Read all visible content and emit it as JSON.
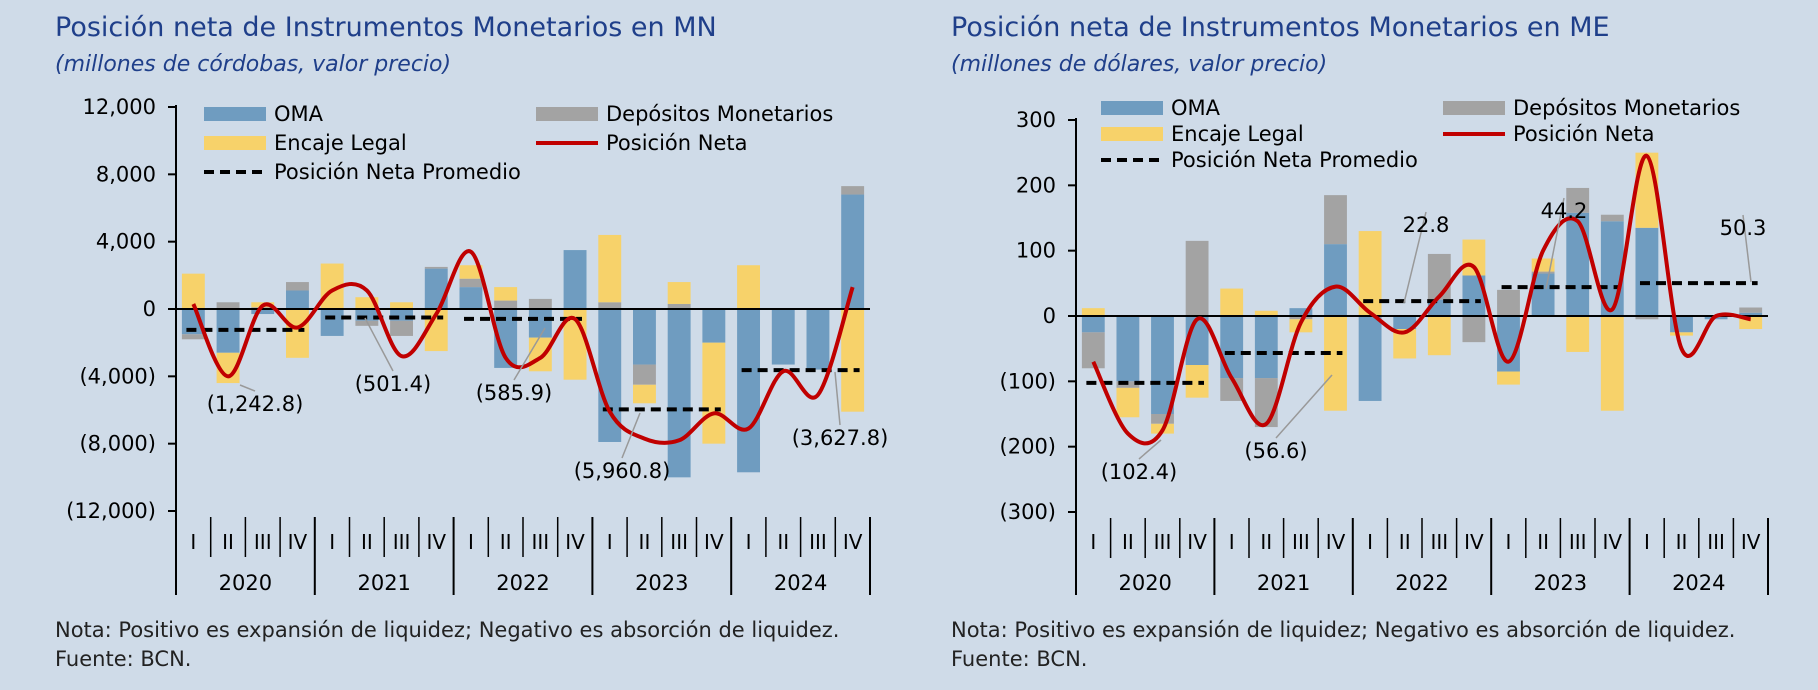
{
  "colors": {
    "oma": "#6f9cc0",
    "encaje": "#f7d26a",
    "depositos": "#a3a3a3",
    "posicion_neta": "#c00000",
    "promedio": "#000000"
  },
  "legend": {
    "oma": "OMA",
    "depositos": "Depósitos Monetarios",
    "encaje": "Encaje Legal",
    "posicion_neta": "Posición Neta",
    "promedio": "Posición Neta Promedio"
  },
  "footnote": {
    "nota": "Nota: Positivo es expansión de liquidez; Negativo es absorción de liquidez.",
    "fuente": "Fuente: BCN."
  },
  "chart_data": [
    {
      "type": "bar",
      "title": "Posición neta de Instrumentos Monetarios en MN",
      "subtitle": "(millones de córdobas, valor precio)",
      "ylim": [
        -12000,
        12000
      ],
      "yticks": [
        12000,
        8000,
        4000,
        0,
        -4000,
        -8000,
        -12000
      ],
      "ytick_labels": [
        "12,000",
        "8,000",
        "4,000",
        "0",
        "(4,000)",
        "(8,000)",
        "(12,000)"
      ],
      "legend_position": "top",
      "grid": false,
      "quarters": [
        "I",
        "II",
        "III",
        "IV"
      ],
      "years": [
        "2020",
        "2021",
        "2022",
        "2023",
        "2024"
      ],
      "series": [
        {
          "name": "OMA",
          "values": [
            -1500,
            -2600,
            -300,
            1100,
            -1600,
            -700,
            -700,
            2400,
            1300,
            -3500,
            -1700,
            3500,
            -7900,
            -3300,
            -10000,
            -2000,
            -9700,
            -3300,
            -3600,
            6800
          ]
        },
        {
          "name": "Depósitos Monetarios",
          "values": [
            -300,
            400,
            100,
            500,
            0,
            -300,
            -900,
            100,
            500,
            500,
            600,
            0,
            400,
            -1200,
            300,
            0,
            0,
            0,
            0,
            500
          ]
        },
        {
          "name": "Encaje Legal",
          "values": [
            2100,
            -1800,
            300,
            -2900,
            2700,
            700,
            400,
            -2500,
            800,
            800,
            -2000,
            -4200,
            4000,
            -1100,
            1300,
            -6000,
            2600,
            0,
            0,
            -6100
          ]
        },
        {
          "name": "Posición Neta",
          "values": [
            300,
            -4000,
            200,
            -1100,
            1100,
            1100,
            -2800,
            -300,
            3400,
            -2900,
            -2900,
            -600,
            -6100,
            -7700,
            -7800,
            -6200,
            -7100,
            -3700,
            -5100,
            1300
          ]
        }
      ],
      "averages": [
        {
          "year": "2020",
          "value": -1242.8,
          "label": "(1,242.8)"
        },
        {
          "year": "2021",
          "value": -501.4,
          "label": "(501.4)"
        },
        {
          "year": "2022",
          "value": -585.9,
          "label": "(585.9)"
        },
        {
          "year": "2023",
          "value": -5960.8,
          "label": "(5,960.8)"
        },
        {
          "year": "2024",
          "value": -3627.8,
          "label": "(3,627.8)"
        }
      ]
    },
    {
      "type": "bar",
      "title": "Posición neta de Instrumentos Monetarios en ME",
      "subtitle": "(millones de dólares, valor precio)",
      "ylim": [
        -300,
        300
      ],
      "yticks": [
        300,
        200,
        100,
        0,
        -100,
        -200,
        -300
      ],
      "ytick_labels": [
        "300",
        "200",
        "100",
        "0",
        "(100)",
        "(200)",
        "(300)"
      ],
      "legend_position": "top",
      "grid": false,
      "quarters": [
        "I",
        "II",
        "III",
        "IV"
      ],
      "years": [
        "2020",
        "2021",
        "2022",
        "2023",
        "2024"
      ],
      "series": [
        {
          "name": "OMA",
          "values": [
            -25,
            -100,
            -150,
            -75,
            -95,
            -95,
            12,
            110,
            -130,
            -20,
            25,
            62,
            -85,
            65,
            158,
            145,
            135,
            -25,
            -5,
            5
          ]
        },
        {
          "name": "Depósitos Monetarios",
          "values": [
            -55,
            -10,
            -15,
            115,
            -35,
            -75,
            -5,
            75,
            0,
            0,
            70,
            -40,
            40,
            3,
            38,
            10,
            -5,
            0,
            0,
            8
          ]
        },
        {
          "name": "Encaje Legal",
          "values": [
            12,
            -45,
            -15,
            -50,
            42,
            8,
            -20,
            -145,
            130,
            -45,
            -60,
            55,
            -20,
            20,
            -55,
            -145,
            115,
            -5,
            0,
            -20
          ]
        },
        {
          "name": "Posición Neta",
          "values": [
            -70,
            -180,
            -175,
            -5,
            -95,
            -165,
            -10,
            45,
            5,
            -25,
            30,
            75,
            -70,
            100,
            145,
            10,
            245,
            -50,
            0,
            -5
          ]
        }
      ],
      "averages": [
        {
          "year": "2020",
          "value": -102.4,
          "label": "(102.4)"
        },
        {
          "year": "2021",
          "value": -56.6,
          "label": "(56.6)"
        },
        {
          "year": "2022",
          "value": 22.8,
          "label": "22.8"
        },
        {
          "year": "2023",
          "value": 44.2,
          "label": "44.2"
        },
        {
          "year": "2024",
          "value": 50.3,
          "label": "50.3"
        }
      ]
    }
  ]
}
